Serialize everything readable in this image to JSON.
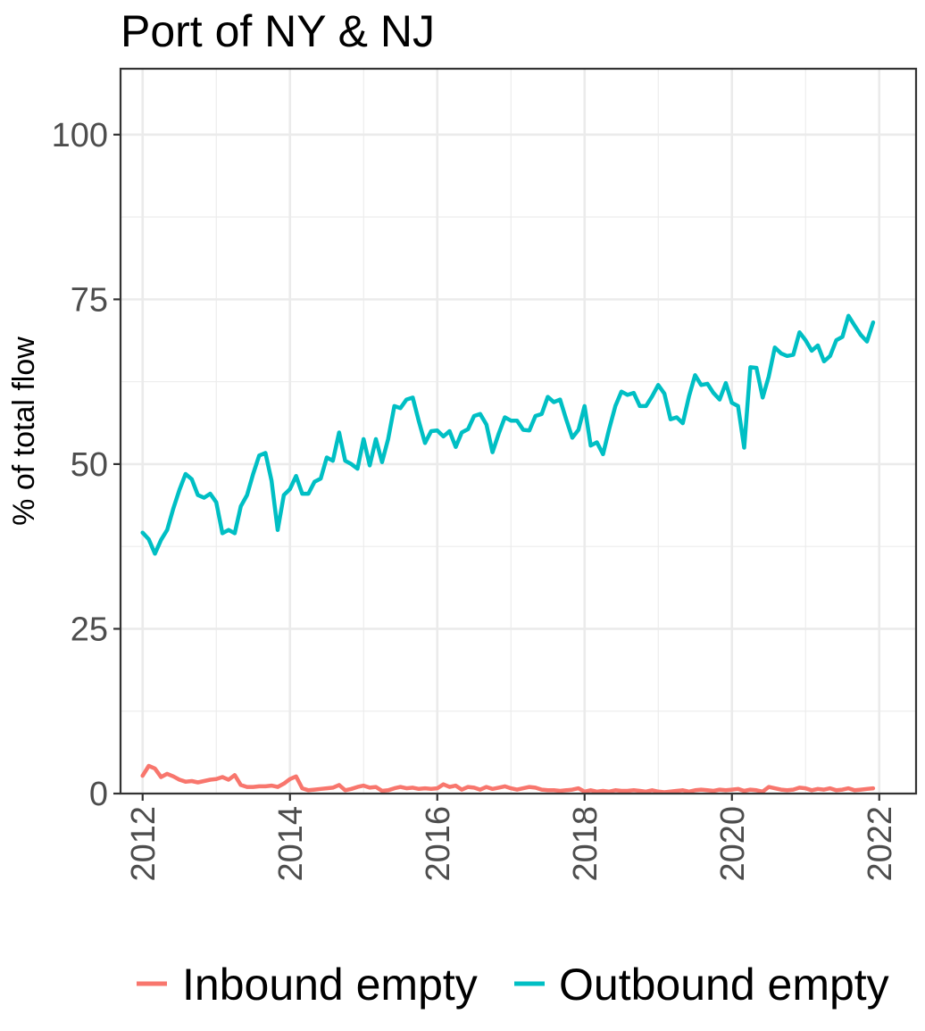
{
  "chart_data": {
    "type": "line",
    "title": "Port of NY & NJ",
    "xlabel": "",
    "ylabel": "% of total flow",
    "xlim": [
      2011.7,
      2022.5
    ],
    "ylim": [
      0,
      110
    ],
    "x_ticks": [
      2012,
      2014,
      2016,
      2018,
      2020,
      2022
    ],
    "y_ticks": [
      0,
      25,
      50,
      75,
      100
    ],
    "x_tick_labels": [
      "2012",
      "2014",
      "2016",
      "2018",
      "2020",
      "2022"
    ],
    "y_tick_labels": [
      "0",
      "25",
      "50",
      "75",
      "100"
    ],
    "grid": true,
    "legend_position": "bottom",
    "series": [
      {
        "name": "Inbound empty",
        "color": "#f8766d",
        "values": [
          [
            2012.0,
            2.7
          ],
          [
            2012.083,
            4.2
          ],
          [
            2012.167,
            3.8
          ],
          [
            2012.25,
            2.5
          ],
          [
            2012.333,
            3.0
          ],
          [
            2012.417,
            2.6
          ],
          [
            2012.5,
            2.1
          ],
          [
            2012.583,
            1.8
          ],
          [
            2012.667,
            1.9
          ],
          [
            2012.75,
            1.7
          ],
          [
            2012.833,
            1.9
          ],
          [
            2012.917,
            2.1
          ],
          [
            2013.0,
            2.2
          ],
          [
            2013.083,
            2.5
          ],
          [
            2013.167,
            2.1
          ],
          [
            2013.25,
            2.8
          ],
          [
            2013.333,
            1.3
          ],
          [
            2013.417,
            1.0
          ],
          [
            2013.5,
            1.0
          ],
          [
            2013.583,
            1.1
          ],
          [
            2013.667,
            1.1
          ],
          [
            2013.75,
            1.2
          ],
          [
            2013.833,
            1.0
          ],
          [
            2013.917,
            1.5
          ],
          [
            2014.0,
            2.2
          ],
          [
            2014.083,
            2.6
          ],
          [
            2014.167,
            0.8
          ],
          [
            2014.25,
            0.5
          ],
          [
            2014.333,
            0.6
          ],
          [
            2014.417,
            0.7
          ],
          [
            2014.5,
            0.8
          ],
          [
            2014.583,
            0.9
          ],
          [
            2014.667,
            1.3
          ],
          [
            2014.75,
            0.5
          ],
          [
            2014.833,
            0.7
          ],
          [
            2014.917,
            1.0
          ],
          [
            2015.0,
            1.2
          ],
          [
            2015.083,
            0.9
          ],
          [
            2015.167,
            1.0
          ],
          [
            2015.25,
            0.4
          ],
          [
            2015.333,
            0.5
          ],
          [
            2015.417,
            0.8
          ],
          [
            2015.5,
            1.0
          ],
          [
            2015.583,
            0.8
          ],
          [
            2015.667,
            0.9
          ],
          [
            2015.75,
            0.7
          ],
          [
            2015.833,
            0.8
          ],
          [
            2015.917,
            0.7
          ],
          [
            2016.0,
            0.8
          ],
          [
            2016.083,
            1.4
          ],
          [
            2016.167,
            1.0
          ],
          [
            2016.25,
            1.2
          ],
          [
            2016.333,
            0.6
          ],
          [
            2016.417,
            1.0
          ],
          [
            2016.5,
            0.9
          ],
          [
            2016.583,
            0.6
          ],
          [
            2016.667,
            1.0
          ],
          [
            2016.75,
            0.7
          ],
          [
            2016.833,
            0.9
          ],
          [
            2016.917,
            1.1
          ],
          [
            2017.0,
            0.8
          ],
          [
            2017.083,
            0.6
          ],
          [
            2017.167,
            0.8
          ],
          [
            2017.25,
            1.0
          ],
          [
            2017.333,
            0.9
          ],
          [
            2017.417,
            0.6
          ],
          [
            2017.5,
            0.5
          ],
          [
            2017.583,
            0.5
          ],
          [
            2017.667,
            0.4
          ],
          [
            2017.75,
            0.5
          ],
          [
            2017.833,
            0.6
          ],
          [
            2017.917,
            0.8
          ],
          [
            2018.0,
            0.3
          ],
          [
            2018.083,
            0.5
          ],
          [
            2018.167,
            0.3
          ],
          [
            2018.25,
            0.4
          ],
          [
            2018.333,
            0.3
          ],
          [
            2018.417,
            0.5
          ],
          [
            2018.5,
            0.4
          ],
          [
            2018.583,
            0.4
          ],
          [
            2018.667,
            0.5
          ],
          [
            2018.75,
            0.4
          ],
          [
            2018.833,
            0.3
          ],
          [
            2018.917,
            0.5
          ],
          [
            2019.0,
            0.3
          ],
          [
            2019.083,
            0.2
          ],
          [
            2019.167,
            0.3
          ],
          [
            2019.25,
            0.4
          ],
          [
            2019.333,
            0.5
          ],
          [
            2019.417,
            0.3
          ],
          [
            2019.5,
            0.5
          ],
          [
            2019.583,
            0.6
          ],
          [
            2019.667,
            0.5
          ],
          [
            2019.75,
            0.4
          ],
          [
            2019.833,
            0.6
          ],
          [
            2019.917,
            0.5
          ],
          [
            2020.0,
            0.6
          ],
          [
            2020.083,
            0.7
          ],
          [
            2020.167,
            0.4
          ],
          [
            2020.25,
            0.6
          ],
          [
            2020.333,
            0.5
          ],
          [
            2020.417,
            0.3
          ],
          [
            2020.5,
            1.0
          ],
          [
            2020.583,
            0.8
          ],
          [
            2020.667,
            0.6
          ],
          [
            2020.75,
            0.5
          ],
          [
            2020.833,
            0.6
          ],
          [
            2020.917,
            0.9
          ],
          [
            2021.0,
            0.8
          ],
          [
            2021.083,
            0.5
          ],
          [
            2021.167,
            0.7
          ],
          [
            2021.25,
            0.6
          ],
          [
            2021.333,
            0.8
          ],
          [
            2021.417,
            0.5
          ],
          [
            2021.5,
            0.6
          ],
          [
            2021.583,
            0.8
          ],
          [
            2021.667,
            0.5
          ],
          [
            2021.75,
            0.6
          ],
          [
            2021.833,
            0.7
          ],
          [
            2021.917,
            0.8
          ]
        ]
      },
      {
        "name": "Outbound empty",
        "color": "#00bfc4",
        "values": [
          [
            2012.0,
            39.6
          ],
          [
            2012.083,
            38.6
          ],
          [
            2012.167,
            36.4
          ],
          [
            2012.25,
            38.5
          ],
          [
            2012.333,
            40.0
          ],
          [
            2012.417,
            43.3
          ],
          [
            2012.5,
            46.1
          ],
          [
            2012.583,
            48.5
          ],
          [
            2012.667,
            47.7
          ],
          [
            2012.75,
            45.3
          ],
          [
            2012.833,
            44.9
          ],
          [
            2012.917,
            45.5
          ],
          [
            2013.0,
            44.2
          ],
          [
            2013.083,
            39.5
          ],
          [
            2013.167,
            40.0
          ],
          [
            2013.25,
            39.5
          ],
          [
            2013.333,
            43.6
          ],
          [
            2013.417,
            45.3
          ],
          [
            2013.5,
            48.5
          ],
          [
            2013.583,
            51.3
          ],
          [
            2013.667,
            51.7
          ],
          [
            2013.75,
            47.5
          ],
          [
            2013.833,
            40.0
          ],
          [
            2013.917,
            45.3
          ],
          [
            2014.0,
            46.2
          ],
          [
            2014.083,
            48.2
          ],
          [
            2014.167,
            45.5
          ],
          [
            2014.25,
            45.5
          ],
          [
            2014.333,
            47.3
          ],
          [
            2014.417,
            47.8
          ],
          [
            2014.5,
            51.0
          ],
          [
            2014.583,
            50.5
          ],
          [
            2014.667,
            54.8
          ],
          [
            2014.75,
            50.5
          ],
          [
            2014.833,
            50.0
          ],
          [
            2014.917,
            49.3
          ],
          [
            2015.0,
            53.8
          ],
          [
            2015.083,
            49.8
          ],
          [
            2015.167,
            53.8
          ],
          [
            2015.25,
            50.3
          ],
          [
            2015.333,
            53.8
          ],
          [
            2015.417,
            58.8
          ],
          [
            2015.5,
            58.5
          ],
          [
            2015.583,
            59.8
          ],
          [
            2015.667,
            60.1
          ],
          [
            2015.75,
            56.5
          ],
          [
            2015.833,
            53.2
          ],
          [
            2015.917,
            55.0
          ],
          [
            2016.0,
            55.1
          ],
          [
            2016.083,
            54.2
          ],
          [
            2016.167,
            55.0
          ],
          [
            2016.25,
            52.6
          ],
          [
            2016.333,
            54.8
          ],
          [
            2016.417,
            55.3
          ],
          [
            2016.5,
            57.3
          ],
          [
            2016.583,
            57.6
          ],
          [
            2016.667,
            56.0
          ],
          [
            2016.75,
            51.8
          ],
          [
            2016.833,
            54.6
          ],
          [
            2016.917,
            57.1
          ],
          [
            2017.0,
            56.6
          ],
          [
            2017.083,
            56.6
          ],
          [
            2017.167,
            55.2
          ],
          [
            2017.25,
            55.1
          ],
          [
            2017.333,
            57.3
          ],
          [
            2017.417,
            57.6
          ],
          [
            2017.5,
            60.2
          ],
          [
            2017.583,
            59.4
          ],
          [
            2017.667,
            59.8
          ],
          [
            2017.75,
            56.8
          ],
          [
            2017.833,
            54.0
          ],
          [
            2017.917,
            55.2
          ],
          [
            2018.0,
            58.8
          ],
          [
            2018.083,
            52.8
          ],
          [
            2018.167,
            53.3
          ],
          [
            2018.25,
            51.5
          ],
          [
            2018.333,
            55.3
          ],
          [
            2018.417,
            58.8
          ],
          [
            2018.5,
            61.0
          ],
          [
            2018.583,
            60.5
          ],
          [
            2018.667,
            60.8
          ],
          [
            2018.75,
            58.8
          ],
          [
            2018.833,
            58.8
          ],
          [
            2018.917,
            60.3
          ],
          [
            2019.0,
            62.0
          ],
          [
            2019.083,
            60.7
          ],
          [
            2019.167,
            56.8
          ],
          [
            2019.25,
            57.1
          ],
          [
            2019.333,
            56.2
          ],
          [
            2019.417,
            60.3
          ],
          [
            2019.5,
            63.5
          ],
          [
            2019.583,
            62.0
          ],
          [
            2019.667,
            62.2
          ],
          [
            2019.75,
            60.8
          ],
          [
            2019.833,
            59.8
          ],
          [
            2019.917,
            62.3
          ],
          [
            2020.0,
            59.3
          ],
          [
            2020.083,
            58.8
          ],
          [
            2020.167,
            52.5
          ],
          [
            2020.25,
            64.7
          ],
          [
            2020.333,
            64.6
          ],
          [
            2020.417,
            60.1
          ],
          [
            2020.5,
            63.3
          ],
          [
            2020.583,
            67.7
          ],
          [
            2020.667,
            66.8
          ],
          [
            2020.75,
            66.4
          ],
          [
            2020.833,
            66.6
          ],
          [
            2020.917,
            70.0
          ],
          [
            2021.0,
            68.8
          ],
          [
            2021.083,
            67.2
          ],
          [
            2021.167,
            68.0
          ],
          [
            2021.25,
            65.6
          ],
          [
            2021.333,
            66.4
          ],
          [
            2021.417,
            68.8
          ],
          [
            2021.5,
            69.3
          ],
          [
            2021.583,
            72.5
          ],
          [
            2021.667,
            71.0
          ],
          [
            2021.75,
            69.6
          ],
          [
            2021.833,
            68.6
          ],
          [
            2021.917,
            71.5
          ]
        ]
      }
    ]
  }
}
